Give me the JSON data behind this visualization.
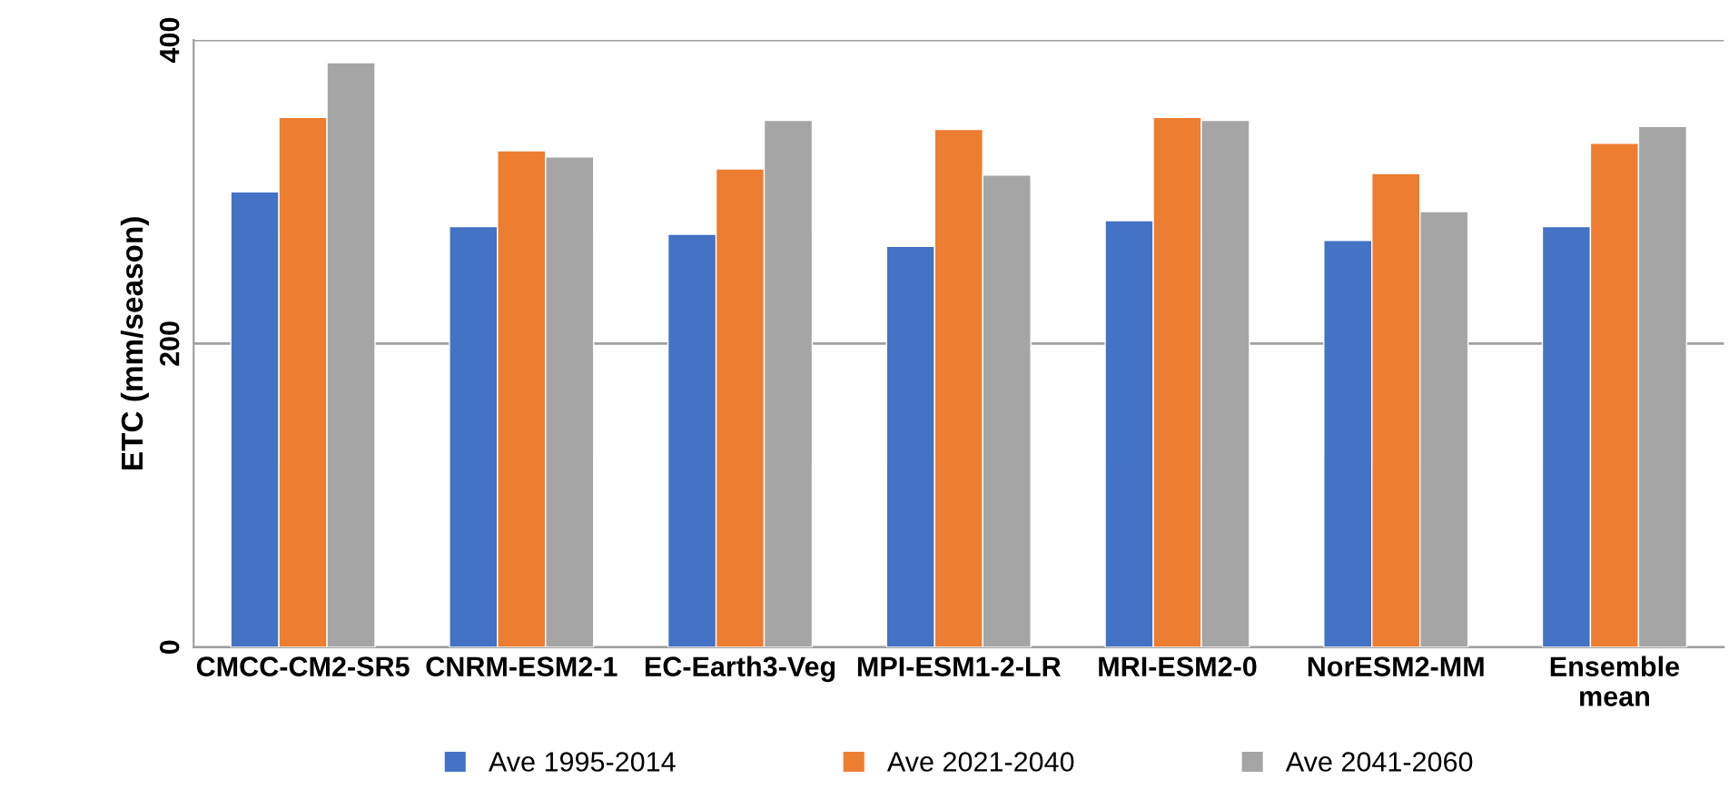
{
  "chart_data": {
    "type": "bar",
    "ylabel": "ETC (mm/season)",
    "categories": [
      "CMCC-CM2-SR5",
      "CNRM-ESM2-1",
      "EC-Earth3-Veg",
      "MPI-ESM1-2-LR",
      "MRI-ESM2-0",
      "NorESM2-MM",
      "Ensemble\nmean"
    ],
    "series": [
      {
        "name": "Ave 1995-2014",
        "color": "#4472c4",
        "values": [
          300,
          277,
          272,
          264,
          281,
          268,
          277
        ]
      },
      {
        "name": "Ave 2021-2040",
        "color": "#ed7d31",
        "values": [
          349,
          327,
          315,
          341,
          349,
          312,
          332
        ]
      },
      {
        "name": "Ave 2041-2060",
        "color": "#a5a5a5",
        "values": [
          385,
          323,
          347,
          311,
          347,
          287,
          343
        ]
      }
    ],
    "ylim": [
      0,
      400
    ],
    "yticks": [
      0,
      200,
      400
    ],
    "grid": "y",
    "legend": "bottom"
  }
}
